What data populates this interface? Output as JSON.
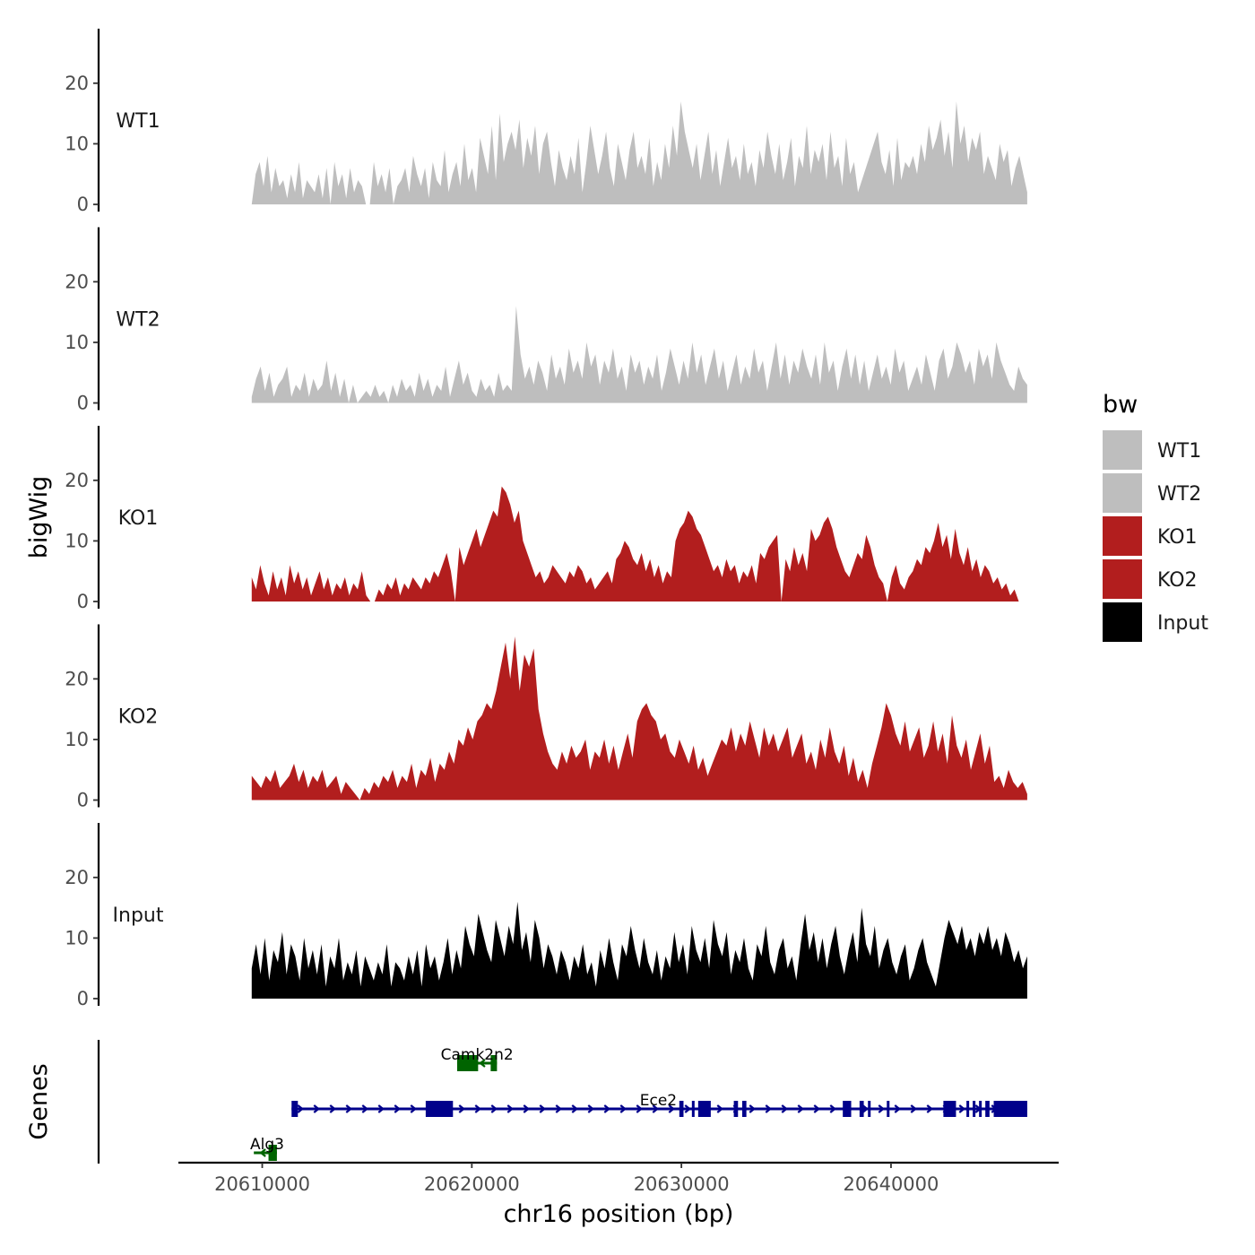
{
  "chart_data": {
    "type": "area",
    "ylabel": "bigWig",
    "genes_label": "Genes",
    "xlabel": "chr16 position (bp)",
    "x_range": [
      20606000,
      20648000
    ],
    "data_range": [
      20609500,
      20646500
    ],
    "x_ticks": [
      20610000,
      20620000,
      20630000,
      20640000
    ],
    "x_tick_labels": [
      "20610000",
      "20620000",
      "20630000",
      "20640000"
    ],
    "y_range": [
      0,
      29
    ],
    "y_ticks": [
      0,
      10,
      20
    ],
    "y_tick_labels": [
      "0",
      "10",
      "20"
    ],
    "tracks": [
      {
        "name": "WT1",
        "color": "#bebebe",
        "gaps": [
          [
            20614900,
            20615200
          ]
        ],
        "values": [
          0,
          5,
          7,
          3,
          8,
          2,
          6,
          3,
          4,
          1,
          5,
          2,
          7,
          1,
          4,
          3,
          2,
          5,
          1,
          6,
          0,
          7,
          3,
          5,
          1,
          6,
          2,
          4,
          3,
          5,
          1,
          7,
          3,
          5,
          2,
          6,
          0,
          3,
          4,
          6,
          2,
          8,
          5,
          3,
          6,
          1,
          7,
          4,
          3,
          9,
          2,
          5,
          7,
          3,
          10,
          4,
          6,
          2,
          11,
          8,
          5,
          13,
          4,
          15,
          7,
          10,
          12,
          9,
          14,
          6,
          11,
          8,
          13,
          5,
          10,
          12,
          7,
          3,
          9,
          6,
          4,
          8,
          5,
          11,
          2,
          7,
          13,
          9,
          5,
          8,
          12,
          6,
          3,
          10,
          7,
          4,
          9,
          12,
          6,
          8,
          5,
          11,
          3,
          7,
          4,
          10,
          6,
          13,
          8,
          17,
          12,
          9,
          6,
          10,
          4,
          8,
          12,
          5,
          9,
          3,
          7,
          11,
          6,
          8,
          4,
          10,
          5,
          7,
          3,
          9,
          6,
          12,
          8,
          5,
          10,
          4,
          7,
          11,
          3,
          8,
          6,
          13,
          5,
          9,
          7,
          10,
          4,
          12,
          6,
          8,
          3,
          11,
          5,
          7,
          2,
          4,
          6,
          8,
          10,
          12,
          7,
          5,
          9,
          3,
          11,
          4,
          7,
          6,
          8,
          5,
          10,
          7,
          13,
          9,
          11,
          14,
          8,
          12,
          6,
          17,
          10,
          13,
          7,
          11,
          9,
          12,
          5,
          8,
          6,
          4,
          10,
          7,
          9,
          3,
          6,
          8,
          5,
          2
        ]
      },
      {
        "name": "WT2",
        "color": "#bebebe",
        "gaps": [
          [
            20614000,
            20614300
          ]
        ],
        "values": [
          1,
          4,
          6,
          2,
          5,
          1,
          3,
          4,
          6,
          1,
          3,
          2,
          5,
          1,
          4,
          2,
          3,
          7,
          2,
          5,
          1,
          4,
          2,
          3,
          0,
          1,
          2,
          1,
          3,
          1,
          2,
          0,
          3,
          1,
          4,
          2,
          3,
          1,
          5,
          2,
          4,
          1,
          3,
          2,
          6,
          1,
          4,
          7,
          3,
          5,
          2,
          1,
          4,
          2,
          3,
          1,
          5,
          2,
          3,
          2,
          16,
          8,
          4,
          6,
          3,
          7,
          5,
          2,
          8,
          4,
          6,
          3,
          9,
          5,
          7,
          4,
          10,
          6,
          8,
          3,
          7,
          5,
          9,
          4,
          6,
          2,
          8,
          5,
          7,
          3,
          6,
          4,
          8,
          2,
          5,
          9,
          6,
          3,
          7,
          4,
          10,
          5,
          8,
          3,
          6,
          9,
          4,
          7,
          2,
          5,
          8,
          3,
          6,
          4,
          9,
          5,
          7,
          2,
          6,
          10,
          4,
          8,
          3,
          7,
          5,
          9,
          6,
          4,
          8,
          3,
          10,
          5,
          7,
          2,
          6,
          9,
          4,
          8,
          3,
          7,
          2,
          5,
          8,
          4,
          6,
          3,
          9,
          5,
          7,
          2,
          4,
          6,
          3,
          8,
          5,
          2,
          7,
          9,
          4,
          6,
          10,
          8,
          5,
          7,
          3,
          9,
          6,
          8,
          4,
          10,
          7,
          5,
          3,
          2,
          6,
          4,
          3
        ]
      },
      {
        "name": "KO1",
        "color": "#b21e1e",
        "gaps": [
          [
            20615100,
            20615500
          ],
          [
            20619100,
            20619400
          ],
          [
            20634600,
            20634800
          ],
          [
            20639700,
            20640000
          ],
          [
            20646100,
            20646300
          ]
        ],
        "values": [
          4,
          2,
          6,
          3,
          1,
          5,
          2,
          4,
          1,
          6,
          3,
          5,
          2,
          4,
          1,
          3,
          5,
          2,
          4,
          1,
          3,
          2,
          4,
          1,
          3,
          2,
          5,
          1,
          3,
          4,
          2,
          1,
          3,
          2,
          4,
          1,
          3,
          2,
          4,
          3,
          2,
          4,
          3,
          5,
          4,
          6,
          8,
          5,
          7,
          9,
          6,
          8,
          10,
          12,
          9,
          11,
          13,
          15,
          14,
          19,
          18,
          16,
          13,
          15,
          10,
          8,
          6,
          4,
          5,
          3,
          4,
          6,
          5,
          4,
          3,
          5,
          4,
          6,
          5,
          3,
          4,
          2,
          3,
          4,
          5,
          3,
          7,
          8,
          10,
          9,
          7,
          6,
          8,
          5,
          7,
          4,
          6,
          3,
          5,
          4,
          10,
          12,
          13,
          15,
          14,
          12,
          11,
          9,
          7,
          5,
          6,
          4,
          7,
          5,
          6,
          3,
          5,
          4,
          6,
          3,
          8,
          7,
          9,
          10,
          11,
          8,
          7,
          5,
          9,
          6,
          8,
          5,
          12,
          10,
          11,
          13,
          14,
          12,
          9,
          7,
          5,
          4,
          6,
          8,
          7,
          11,
          9,
          6,
          4,
          3,
          5,
          4,
          6,
          3,
          2,
          4,
          5,
          7,
          6,
          9,
          8,
          10,
          13,
          9,
          11,
          7,
          12,
          8,
          6,
          9,
          5,
          7,
          4,
          6,
          5,
          3,
          4,
          2,
          3,
          1,
          2,
          0,
          1,
          0
        ]
      },
      {
        "name": "KO2",
        "color": "#b21e1e",
        "gaps": [
          [
            20614500,
            20614800
          ]
        ],
        "values": [
          4,
          3,
          2,
          4,
          3,
          5,
          2,
          3,
          4,
          6,
          3,
          5,
          2,
          4,
          3,
          5,
          2,
          3,
          4,
          1,
          3,
          2,
          1,
          3,
          2,
          1,
          3,
          2,
          4,
          3,
          5,
          2,
          4,
          3,
          6,
          2,
          5,
          4,
          7,
          3,
          6,
          5,
          8,
          6,
          10,
          9,
          12,
          10,
          13,
          14,
          16,
          15,
          18,
          22,
          26,
          20,
          27,
          18,
          24,
          22,
          25,
          15,
          11,
          8,
          6,
          5,
          8,
          6,
          9,
          7,
          8,
          10,
          5,
          8,
          7,
          10,
          6,
          9,
          5,
          8,
          11,
          7,
          13,
          15,
          16,
          14,
          13,
          10,
          11,
          8,
          7,
          10,
          8,
          6,
          9,
          5,
          7,
          4,
          6,
          8,
          10,
          9,
          12,
          8,
          11,
          9,
          13,
          10,
          7,
          12,
          9,
          11,
          8,
          10,
          12,
          7,
          9,
          11,
          6,
          8,
          5,
          10,
          7,
          12,
          8,
          6,
          9,
          4,
          7,
          3,
          5,
          2,
          6,
          9,
          12,
          16,
          14,
          11,
          9,
          13,
          8,
          10,
          12,
          7,
          9,
          13,
          8,
          11,
          6,
          14,
          9,
          7,
          10,
          5,
          8,
          11,
          6,
          9,
          3,
          4,
          2,
          5,
          3,
          2,
          3,
          1
        ]
      },
      {
        "name": "Input",
        "color": "#000000",
        "gaps": [],
        "values": [
          5,
          9,
          4,
          10,
          3,
          8,
          6,
          11,
          4,
          9,
          7,
          3,
          10,
          5,
          8,
          4,
          9,
          2,
          7,
          5,
          10,
          3,
          6,
          4,
          8,
          2,
          7,
          5,
          3,
          6,
          4,
          9,
          2,
          6,
          5,
          3,
          7,
          4,
          8,
          2,
          9,
          5,
          7,
          3,
          6,
          10,
          4,
          8,
          5,
          12,
          9,
          7,
          14,
          11,
          8,
          6,
          13,
          10,
          7,
          12,
          9,
          16,
          8,
          11,
          6,
          13,
          10,
          5,
          9,
          7,
          4,
          8,
          6,
          3,
          7,
          5,
          9,
          4,
          6,
          2,
          8,
          5,
          10,
          6,
          3,
          9,
          7,
          12,
          8,
          5,
          10,
          6,
          4,
          8,
          3,
          7,
          5,
          11,
          6,
          9,
          4,
          12,
          8,
          6,
          10,
          5,
          13,
          9,
          7,
          11,
          4,
          8,
          6,
          10,
          5,
          3,
          9,
          7,
          12,
          6,
          4,
          8,
          10,
          5,
          7,
          3,
          9,
          14,
          8,
          11,
          6,
          10,
          5,
          9,
          12,
          7,
          4,
          8,
          11,
          6,
          15,
          9,
          7,
          12,
          5,
          8,
          10,
          6,
          4,
          7,
          9,
          3,
          5,
          8,
          10,
          6,
          4,
          2,
          6,
          10,
          13,
          11,
          9,
          12,
          8,
          10,
          7,
          11,
          9,
          12,
          8,
          10,
          7,
          11,
          9,
          6,
          8,
          5,
          7
        ]
      }
    ],
    "genes": [
      {
        "name": "Camk2n2",
        "color": "#006400",
        "strand": "-",
        "row": 1,
        "start": 20619300,
        "end": 20621200,
        "exons": [
          [
            20619300,
            20620300
          ],
          [
            20620900,
            20621200
          ]
        ]
      },
      {
        "name": "Ece2",
        "color": "#00008b",
        "strand": "+",
        "row": 2,
        "start": 20611400,
        "end": 20646500,
        "exons": [
          [
            20611400,
            20611700
          ],
          [
            20617800,
            20619100
          ],
          [
            20629900,
            20630100
          ],
          [
            20630500,
            20630600
          ],
          [
            20630800,
            20631400
          ],
          [
            20632500,
            20632700
          ],
          [
            20632900,
            20633100
          ],
          [
            20637700,
            20638100
          ],
          [
            20638500,
            20638700
          ],
          [
            20638900,
            20639000
          ],
          [
            20639800,
            20639900
          ],
          [
            20642500,
            20643100
          ],
          [
            20643600,
            20643700
          ],
          [
            20643900,
            20644000
          ],
          [
            20644200,
            20644300
          ],
          [
            20644500,
            20644700
          ],
          [
            20644900,
            20646500
          ]
        ]
      },
      {
        "name": "Alg3",
        "color": "#006400",
        "strand": "-",
        "row": 3,
        "start": 20609600,
        "end": 20610700,
        "exons": [
          [
            20610300,
            20610700
          ]
        ]
      }
    ],
    "legend": {
      "title": "bw",
      "position": "right",
      "entries": [
        {
          "label": "WT1",
          "color": "#bebebe"
        },
        {
          "label": "WT2",
          "color": "#bebebe"
        },
        {
          "label": "KO1",
          "color": "#b21e1e"
        },
        {
          "label": "KO2",
          "color": "#b21e1e"
        },
        {
          "label": "Input",
          "color": "#000000"
        }
      ]
    }
  }
}
